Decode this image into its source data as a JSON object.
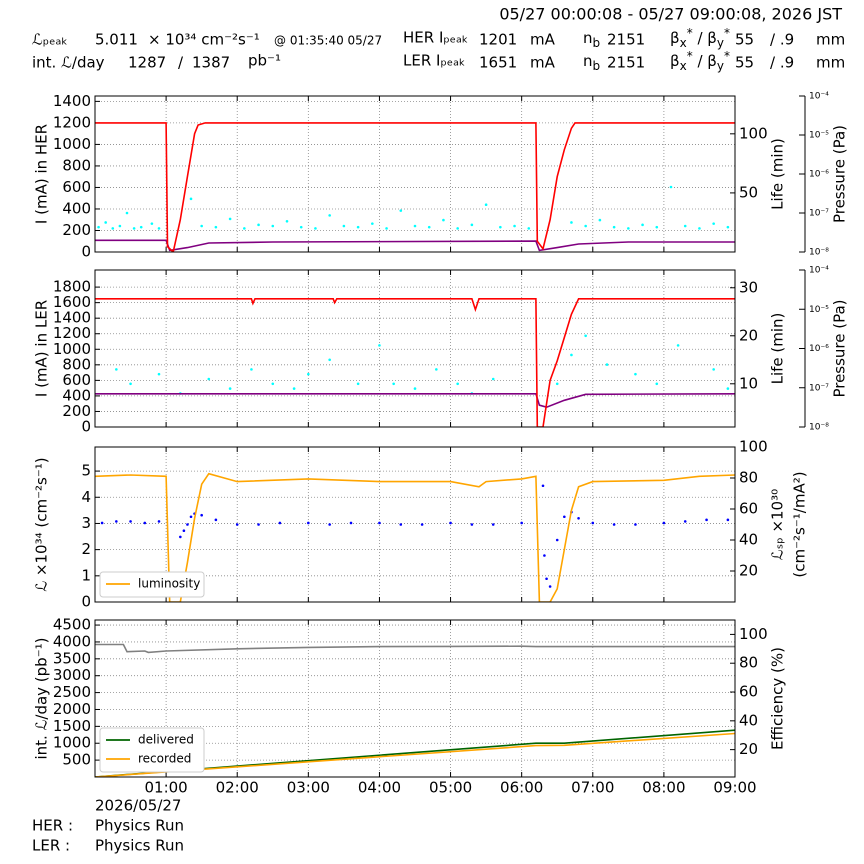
{
  "header": {
    "date_range": "05/27 00:00:08 - 05/27 09:00:08, 2026 JST",
    "row1": {
      "lumi_label": "ℒₚₑₐₖ",
      "lumi_peak": "5.011",
      "lumi_unit": "× 10³⁴ cm⁻²s⁻¹",
      "lumi_time": "@ 01:35:40 05/27",
      "ring_label": "HER Iₚₑₐₖ",
      "current": "1201",
      "current_unit": "mA",
      "nb_main": "n",
      "nb_sub": "b",
      "nb": "2151",
      "beta": [
        "β",
        "x",
        "*",
        " / β",
        "y",
        "*"
      ],
      "beta_x": "55",
      "beta_y": "/ .9",
      "beta_unit": "mm"
    },
    "row2": {
      "int_label": "int. ℒ/day",
      "recorded": "1287",
      "sep": "/",
      "delivered": "1387",
      "int_unit": "pb⁻¹",
      "ring_label": "LER Iₚₑₐₖ",
      "current": "1651",
      "current_unit": "mA",
      "nb_main": "n",
      "nb_sub": "b",
      "nb": "2151",
      "beta": [
        "β",
        "x",
        "*",
        " / β",
        "y",
        "*"
      ],
      "beta_x": "55",
      "beta_y": "/ .9",
      "beta_unit": "mm"
    }
  },
  "chart_data": [
    {
      "type": "line",
      "ylabel": "I (mA) in HER",
      "xlim": [
        0,
        9
      ],
      "grid": true,
      "ylim": [
        0,
        1450
      ],
      "yticks": [
        0,
        200,
        400,
        600,
        800,
        1000,
        1200,
        1400
      ],
      "y2label": [
        "Life (min)"
      ],
      "y2lim": [
        0,
        132
      ],
      "y2ticks": [
        50,
        100
      ],
      "y3label": "Pressure (Pa)",
      "y3log": true,
      "y3lim": [
        1e-08,
        0.0001
      ],
      "y3ticks": [
        {
          "value": 1e-08,
          "label": "10⁻⁸"
        },
        {
          "value": 1e-07,
          "label": "10⁻⁷"
        },
        {
          "value": 1e-06,
          "label": "10⁻⁶"
        },
        {
          "value": 1e-05,
          "label": "10⁻⁵"
        },
        {
          "value": 0.0001,
          "label": "10⁻⁴"
        }
      ],
      "series": [
        {
          "style": "scatter",
          "axis": "y2",
          "color": "#00ffff",
          "x": [
            0.05,
            0.15,
            0.25,
            0.35,
            0.45,
            0.55,
            0.65,
            0.8,
            0.9,
            1.35,
            1.5,
            1.7,
            1.9,
            2.1,
            2.3,
            2.5,
            2.7,
            2.9,
            3.1,
            3.3,
            3.5,
            3.7,
            3.9,
            4.1,
            4.3,
            4.5,
            4.7,
            4.9,
            5.1,
            5.3,
            5.5,
            5.7,
            5.9,
            6.1,
            6.7,
            6.9,
            7.1,
            7.3,
            7.5,
            7.7,
            7.9,
            8.1,
            8.3,
            8.5,
            8.7,
            8.9
          ],
          "values": [
            21,
            25,
            20,
            22,
            33,
            20,
            21,
            24,
            20,
            45,
            22,
            21,
            28,
            20,
            23,
            22,
            26,
            21,
            20,
            31,
            22,
            21,
            24,
            20,
            35,
            22,
            21,
            27,
            20,
            23,
            40,
            21,
            22,
            20,
            25,
            22,
            27,
            21,
            20,
            23,
            21,
            55,
            22,
            20,
            24,
            21
          ]
        },
        {
          "style": "line",
          "axis": "y3",
          "color": "#800080",
          "x": [
            0,
            1.0,
            1.05,
            1.3,
            1.6,
            2.5,
            6.2,
            6.25,
            6.5,
            6.8,
            7.5,
            9
          ],
          "values": [
            2e-08,
            2e-08,
            1.1e-08,
            1.3e-08,
            1.7e-08,
            1.8e-08,
            1.9e-08,
            1.1e-08,
            1.3e-08,
            1.6e-08,
            1.8e-08,
            1.8e-08
          ]
        },
        {
          "style": "line",
          "axis": "y",
          "color": "#ff0000",
          "x": [
            0,
            1.0,
            1.02,
            1.1,
            1.2,
            1.3,
            1.4,
            1.45,
            1.55,
            6.2,
            6.22,
            6.3,
            6.4,
            6.5,
            6.6,
            6.7,
            6.75,
            9
          ],
          "values": [
            1200,
            1200,
            50,
            0,
            300,
            700,
            1100,
            1180,
            1200,
            1200,
            100,
            30,
            300,
            700,
            950,
            1150,
            1200,
            1200
          ]
        }
      ]
    },
    {
      "type": "line",
      "ylabel": "I (mA) in LER",
      "xlim": [
        0,
        9
      ],
      "grid": true,
      "ylim": [
        0,
        2020
      ],
      "yticks": [
        0,
        200,
        400,
        600,
        800,
        1000,
        1200,
        1400,
        1600,
        1800
      ],
      "y2label": [
        "Life (min)"
      ],
      "y2lim": [
        1,
        33.7
      ],
      "y2ticks": [
        10,
        20,
        30
      ],
      "y3label": "Pressure (Pa)",
      "y3log": true,
      "y3lim": [
        1e-08,
        0.0001
      ],
      "y3ticks": [
        {
          "value": 1e-08,
          "label": "10⁻⁸"
        },
        {
          "value": 1e-07,
          "label": "10⁻⁷"
        },
        {
          "value": 1e-06,
          "label": "10⁻⁶"
        },
        {
          "value": 1e-05,
          "label": "10⁻⁵"
        },
        {
          "value": 0.0001,
          "label": "10⁻⁴"
        }
      ],
      "series": [
        {
          "style": "scatter",
          "axis": "y2",
          "color": "#00ffff",
          "x": [
            0.3,
            0.5,
            0.9,
            1.2,
            1.6,
            1.9,
            2.2,
            2.5,
            2.8,
            3.0,
            3.3,
            3.7,
            4.0,
            4.2,
            4.5,
            4.8,
            5.1,
            5.3,
            5.6,
            6.5,
            6.7,
            6.9,
            7.2,
            7.6,
            7.9,
            8.2,
            8.7,
            8.9
          ],
          "values": [
            13,
            10,
            12,
            8,
            11,
            9,
            13,
            10,
            9,
            12,
            15,
            10,
            18,
            10,
            9,
            13,
            10,
            8,
            11,
            10,
            16,
            20,
            14,
            12,
            10,
            18,
            13,
            9
          ]
        },
        {
          "style": "line",
          "axis": "y3",
          "color": "#800080",
          "x": [
            0,
            6.2,
            6.25,
            6.35,
            6.6,
            6.9,
            9
          ],
          "values": [
            7e-08,
            7e-08,
            3.6e-08,
            3.2e-08,
            4.8e-08,
            6.8e-08,
            7e-08
          ]
        },
        {
          "style": "line",
          "axis": "y",
          "color": "#ff0000",
          "x": [
            0,
            2.2,
            2.22,
            2.25,
            3.35,
            3.37,
            3.4,
            5.3,
            5.35,
            5.4,
            6.2,
            6.22,
            6.3,
            6.4,
            6.5,
            6.6,
            6.7,
            6.8,
            9
          ],
          "values": [
            1650,
            1650,
            1590,
            1650,
            1650,
            1600,
            1650,
            1650,
            1510,
            1650,
            1650,
            0,
            0,
            600,
            850,
            1150,
            1450,
            1650,
            1650
          ]
        }
      ]
    },
    {
      "type": "line",
      "ylabel": "ℒ ×10³⁴ (cm⁻²s⁻¹)",
      "xlim": [
        0,
        9
      ],
      "grid": true,
      "ylim": [
        0,
        5.92
      ],
      "yticks": [
        0,
        1,
        2,
        3,
        4,
        5
      ],
      "y2label": [
        "ℒₛₚ ×10³⁰",
        "(cm⁻²s⁻¹/mA²)"
      ],
      "y2lim": [
        0,
        100
      ],
      "y2ticks": [
        20,
        40,
        60,
        80,
        100
      ],
      "legend": "lower left",
      "series": [
        {
          "style": "scatter",
          "axis": "y2",
          "color": "#0000ff",
          "x": [
            0.1,
            0.3,
            0.5,
            0.7,
            0.9,
            1.2,
            1.25,
            1.3,
            1.35,
            1.4,
            1.5,
            1.7,
            2.0,
            2.3,
            2.6,
            3.0,
            3.3,
            3.6,
            4.0,
            4.3,
            4.6,
            5.0,
            5.3,
            5.6,
            6.0,
            6.3,
            6.32,
            6.35,
            6.4,
            6.5,
            6.6,
            6.7,
            6.8,
            7.0,
            7.3,
            7.6,
            8.0,
            8.3,
            8.6,
            8.9
          ],
          "values": [
            51,
            52,
            52,
            51,
            52,
            42,
            46,
            50,
            55,
            57,
            56,
            53,
            50,
            50,
            51,
            51,
            50,
            51,
            51,
            50,
            50,
            51,
            50,
            50,
            51,
            75,
            30,
            15,
            10,
            40,
            55,
            58,
            54,
            51,
            50,
            50,
            51,
            52,
            53,
            53
          ]
        },
        {
          "style": "line",
          "axis": "y",
          "name": "luminosity",
          "color": "#ffa500",
          "x": [
            0,
            0.5,
            1.0,
            1.05,
            1.1,
            1.2,
            1.3,
            1.4,
            1.5,
            1.6,
            2.0,
            3.0,
            4.0,
            5.0,
            5.4,
            5.5,
            6.0,
            6.2,
            6.25,
            6.4,
            6.5,
            6.6,
            6.7,
            6.8,
            7.0,
            8.0,
            8.5,
            9
          ],
          "values": [
            4.8,
            4.85,
            4.8,
            0,
            0,
            0,
            1.5,
            3.2,
            4.5,
            4.9,
            4.6,
            4.7,
            4.6,
            4.6,
            4.4,
            4.6,
            4.7,
            4.8,
            0,
            0,
            0.5,
            2.0,
            3.5,
            4.4,
            4.6,
            4.65,
            4.8,
            4.85
          ]
        }
      ]
    },
    {
      "type": "line",
      "ylabel": "int. ℒ/day (pb⁻¹)",
      "xlim": [
        0,
        9
      ],
      "grid": true,
      "xticks": [
        {
          "value": 1,
          "label": "01:00"
        },
        {
          "value": 2,
          "label": "02:00"
        },
        {
          "value": 3,
          "label": "03:00"
        },
        {
          "value": 4,
          "label": "04:00"
        },
        {
          "value": 5,
          "label": "05:00"
        },
        {
          "value": 6,
          "label": "06:00"
        },
        {
          "value": 7,
          "label": "07:00"
        },
        {
          "value": 8,
          "label": "08:00"
        },
        {
          "value": 9,
          "label": "09:00"
        }
      ],
      "ylim": [
        0,
        4650
      ],
      "yticks": [
        500,
        1000,
        1500,
        2000,
        2500,
        3000,
        3500,
        4000,
        4500
      ],
      "y2label": [
        "Efficiency (%)"
      ],
      "y2lim": [
        1,
        110
      ],
      "y2ticks": [
        20,
        40,
        60,
        80,
        100
      ],
      "legend": "lower left",
      "series": [
        {
          "style": "line",
          "axis": "y2",
          "color": "#808080",
          "x": [
            0,
            0.4,
            0.45,
            0.7,
            0.75,
            1.0,
            2.0,
            3.0,
            4.0,
            5.0,
            6.0,
            6.2,
            9
          ],
          "values": [
            93,
            93,
            88,
            88.5,
            87.5,
            88.5,
            90,
            91,
            91.5,
            91.7,
            91.8,
            91.5,
            91.5
          ]
        },
        {
          "style": "line",
          "axis": "y",
          "name": "delivered",
          "color": "#006400",
          "x": [
            0,
            6.2,
            6.6,
            9
          ],
          "values": [
            0,
            1000,
            1000,
            1387
          ]
        },
        {
          "style": "line",
          "axis": "y",
          "name": "recorded",
          "color": "#ffa500",
          "x": [
            0,
            6.2,
            6.6,
            9
          ],
          "values": [
            0,
            930,
            940,
            1287
          ]
        }
      ]
    }
  ],
  "footer": {
    "date": "2026/05/27",
    "her_label": "HER :",
    "her_mode": "Physics Run",
    "ler_label": "LER :",
    "ler_mode": "Physics Run"
  }
}
